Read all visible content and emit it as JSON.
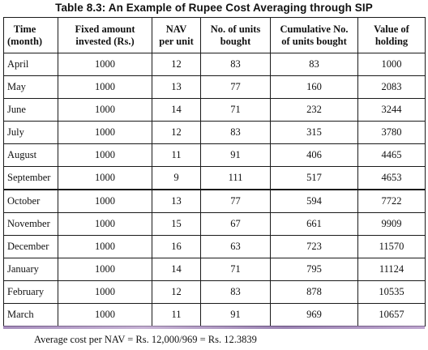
{
  "caption": "Table 8.3: An Example of Rupee Cost Averaging through SIP",
  "headers": [
    [
      "Time",
      "(month)"
    ],
    [
      "Fixed amount",
      "invested (Rs.)"
    ],
    [
      "NAV",
      "per unit"
    ],
    [
      "No. of units",
      "bought"
    ],
    [
      "Cumulative No.",
      "of units bought"
    ],
    [
      "Value of",
      "holding"
    ]
  ],
  "rows": [
    [
      "April",
      "1000",
      "12",
      "83",
      "83",
      "1000"
    ],
    [
      "May",
      "1000",
      "13",
      "77",
      "160",
      "2083"
    ],
    [
      "June",
      "1000",
      "14",
      "71",
      "232",
      "3244"
    ],
    [
      "July",
      "1000",
      "12",
      "83",
      "315",
      "3780"
    ],
    [
      "August",
      "1000",
      "11",
      "91",
      "406",
      "4465"
    ],
    [
      "September",
      "1000",
      "9",
      "111",
      "517",
      "4653"
    ],
    [
      "October",
      "1000",
      "13",
      "77",
      "594",
      "7722"
    ],
    [
      "November",
      "1000",
      "15",
      "67",
      "661",
      "9909"
    ],
    [
      "December",
      "1000",
      "16",
      "63",
      "723",
      "11570"
    ],
    [
      "January",
      "1000",
      "14",
      "71",
      "795",
      "11124"
    ],
    [
      "February",
      "1000",
      "12",
      "83",
      "878",
      "10535"
    ],
    [
      "March",
      "1000",
      "11",
      "91",
      "969",
      "10657"
    ]
  ],
  "footnote": "Average cost per NAV = Rs. 12,000/969 = Rs. 12.3839"
}
